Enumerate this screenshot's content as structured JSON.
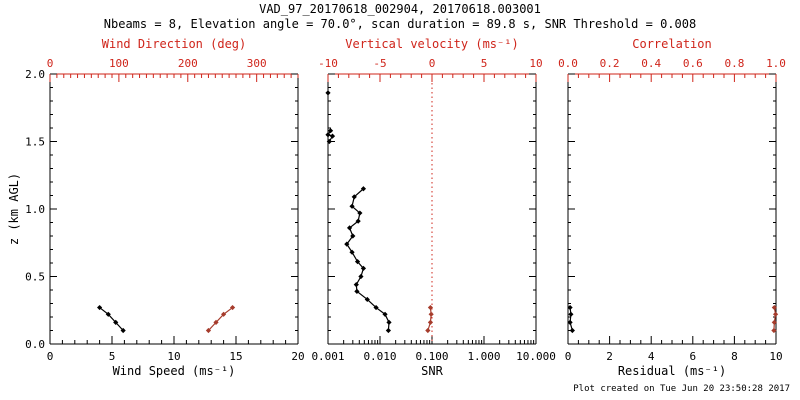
{
  "header": {
    "title": "VAD_97_20170618_002904, 20170618.003001",
    "subtitle": "Nbeams = 8, Elevation angle = 70.0°, scan duration = 89.8 s, SNR Threshold = 0.008"
  },
  "footer": {
    "created": "Plot created on Tue Jun 20 23:50:28 2017"
  },
  "colors": {
    "axis_red": "#cf241a",
    "marker_red": "#a63c2c",
    "black": "#000000"
  },
  "chart_data": [
    {
      "type": "scatter",
      "name": "wind-panel",
      "y_axis": {
        "label": "z (km AGL)",
        "min": 0,
        "max": 2,
        "ticks": [
          0,
          0.5,
          1,
          1.5,
          2
        ],
        "tick_labels": [
          "0.0",
          "0.5",
          "1.0",
          "1.5",
          "2.0"
        ],
        "minor_step": 0.1
      },
      "bottom_axis": {
        "title": "Wind Speed (ms⁻¹)",
        "scale": "linear",
        "min": 0,
        "max": 20,
        "ticks": [
          0,
          5,
          10,
          15,
          20
        ],
        "tick_labels": [
          "0",
          "5",
          "10",
          "15",
          "20"
        ],
        "minor_step": 1,
        "color": "black"
      },
      "top_axis": {
        "title": "Wind Direction (deg)",
        "scale": "linear",
        "min": 0,
        "max": 360,
        "ticks": [
          0,
          100,
          200,
          300
        ],
        "tick_labels": [
          "0",
          "100",
          "200",
          "300"
        ],
        "minor_step": 10,
        "color": "red"
      },
      "series": [
        {
          "name": "wind-speed",
          "axis": "bottom",
          "color": "black",
          "connect": true,
          "z": [
            0.1,
            0.16,
            0.22,
            0.27
          ],
          "values": [
            5.9,
            5.3,
            4.7,
            4.0
          ]
        },
        {
          "name": "wind-direction",
          "axis": "top",
          "color": "red",
          "connect": true,
          "z": [
            0.1,
            0.16,
            0.22,
            0.27
          ],
          "values": [
            230,
            241,
            252,
            265
          ]
        }
      ]
    },
    {
      "type": "scatter",
      "name": "snr-panel",
      "y_axis": {
        "label": "",
        "min": 0,
        "max": 2,
        "ticks": [
          0,
          0.5,
          1,
          1.5,
          2
        ],
        "tick_labels": [],
        "minor_step": 0.1
      },
      "bottom_axis": {
        "title": "SNR",
        "scale": "log",
        "min": 0.001,
        "max": 10,
        "ticks": [
          0.001,
          0.01,
          0.1,
          1,
          10
        ],
        "tick_labels": [
          "0.001",
          "0.010",
          "0.100",
          "1.000",
          "10.000"
        ],
        "color": "black"
      },
      "top_axis": {
        "title": "Vertical velocity (ms⁻¹)",
        "scale": "linear",
        "min": -10,
        "max": 10,
        "ticks": [
          -10,
          -5,
          0,
          5,
          10
        ],
        "tick_labels": [
          "-10",
          "-5",
          "0",
          "5",
          "10"
        ],
        "minor_step": 1,
        "color": "red"
      },
      "vline": {
        "axis": "top",
        "x": 0,
        "style": "dotted",
        "color": "red"
      },
      "series": [
        {
          "name": "snr-isolated-point",
          "axis": "bottom",
          "color": "black",
          "connect": false,
          "z": [
            1.86
          ],
          "values": [
            0.001
          ]
        },
        {
          "name": "snr-cluster",
          "axis": "bottom",
          "color": "black",
          "connect": true,
          "z": [
            1.58,
            1.55,
            1.54,
            1.5
          ],
          "values": [
            0.00112,
            0.001,
            0.00122,
            0.00106
          ]
        },
        {
          "name": "snr-profile",
          "axis": "bottom",
          "color": "black",
          "connect": true,
          "z": [
            1.15,
            1.09,
            1.02,
            0.97,
            0.91,
            0.86,
            0.8,
            0.74,
            0.68,
            0.61,
            0.56,
            0.5,
            0.44,
            0.39,
            0.33,
            0.27,
            0.22,
            0.16,
            0.1
          ],
          "values": [
            0.0048,
            0.0032,
            0.0029,
            0.0041,
            0.0038,
            0.0026,
            0.003,
            0.0023,
            0.0029,
            0.0037,
            0.0048,
            0.0043,
            0.0035,
            0.0036,
            0.0057,
            0.0084,
            0.0125,
            0.0149,
            0.0145
          ]
        },
        {
          "name": "vertical-velocity",
          "axis": "top",
          "color": "red",
          "connect": true,
          "z": [
            0.1,
            0.16,
            0.22,
            0.27
          ],
          "values": [
            -0.4,
            -0.15,
            -0.08,
            -0.15
          ]
        }
      ]
    },
    {
      "type": "scatter",
      "name": "residual-panel",
      "y_axis": {
        "label": "",
        "min": 0,
        "max": 2,
        "ticks": [
          0,
          0.5,
          1,
          1.5,
          2
        ],
        "tick_labels": [],
        "minor_step": 0.1
      },
      "bottom_axis": {
        "title": "Residual (ms⁻¹)",
        "scale": "linear",
        "min": 0,
        "max": 10,
        "ticks": [
          0,
          2,
          4,
          6,
          8,
          10
        ],
        "tick_labels": [
          "0",
          "2",
          "4",
          "6",
          "8",
          "10"
        ],
        "minor_step": 0.5,
        "color": "black"
      },
      "top_axis": {
        "title": "Correlation",
        "scale": "linear",
        "min": 0,
        "max": 1,
        "ticks": [
          0,
          0.2,
          0.4,
          0.6,
          0.8,
          1.0
        ],
        "tick_labels": [
          "0.0",
          "0.2",
          "0.4",
          "0.6",
          "0.8",
          "1.0"
        ],
        "minor_step": 0.05,
        "color": "red"
      },
      "series": [
        {
          "name": "residual",
          "axis": "bottom",
          "color": "black",
          "connect": true,
          "z": [
            0.1,
            0.16,
            0.22,
            0.27
          ],
          "values": [
            0.21,
            0.1,
            0.14,
            0.1
          ]
        },
        {
          "name": "correlation",
          "axis": "top",
          "color": "red",
          "connect": true,
          "z": [
            0.1,
            0.16,
            0.22,
            0.27
          ],
          "values": [
            0.99,
            0.992,
            0.998,
            0.992
          ]
        }
      ]
    }
  ]
}
